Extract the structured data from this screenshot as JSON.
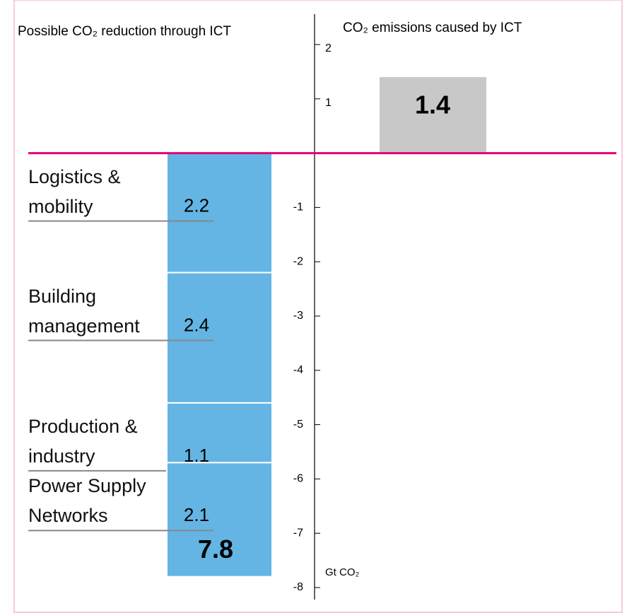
{
  "chart_data": {
    "type": "bar",
    "title": "Possible CO₂ reduction through ICT",
    "title_right": "CO₂ emissions caused by ICT",
    "y_label": "Gt CO₂",
    "ylim": [
      -8,
      2
    ],
    "yticks": [
      -8,
      -7,
      -6,
      -5,
      -4,
      -3,
      -2,
      -1,
      1,
      2
    ],
    "stacked": true,
    "series": [
      {
        "name": "Logistics & mobility",
        "color": "#64b5e3",
        "values": [
          -2.2
        ],
        "value_labels": [
          "2.2"
        ]
      },
      {
        "name": "Building management",
        "color": "#64b5e3",
        "values": [
          -2.4
        ],
        "value_labels": [
          "2.4"
        ]
      },
      {
        "name": "Production & industry",
        "color": "#64b5e3",
        "values": [
          -1.1
        ],
        "value_labels": [
          "1.1"
        ]
      },
      {
        "name": "Power Supply Networks",
        "color": "#64b5e3",
        "values": [
          -2.1
        ],
        "value_labels": [
          "2.1"
        ]
      }
    ],
    "total": 7.8,
    "emissions": {
      "value": 1.4,
      "color": "#c8c8c8"
    },
    "baseline_color": "#e20074"
  }
}
